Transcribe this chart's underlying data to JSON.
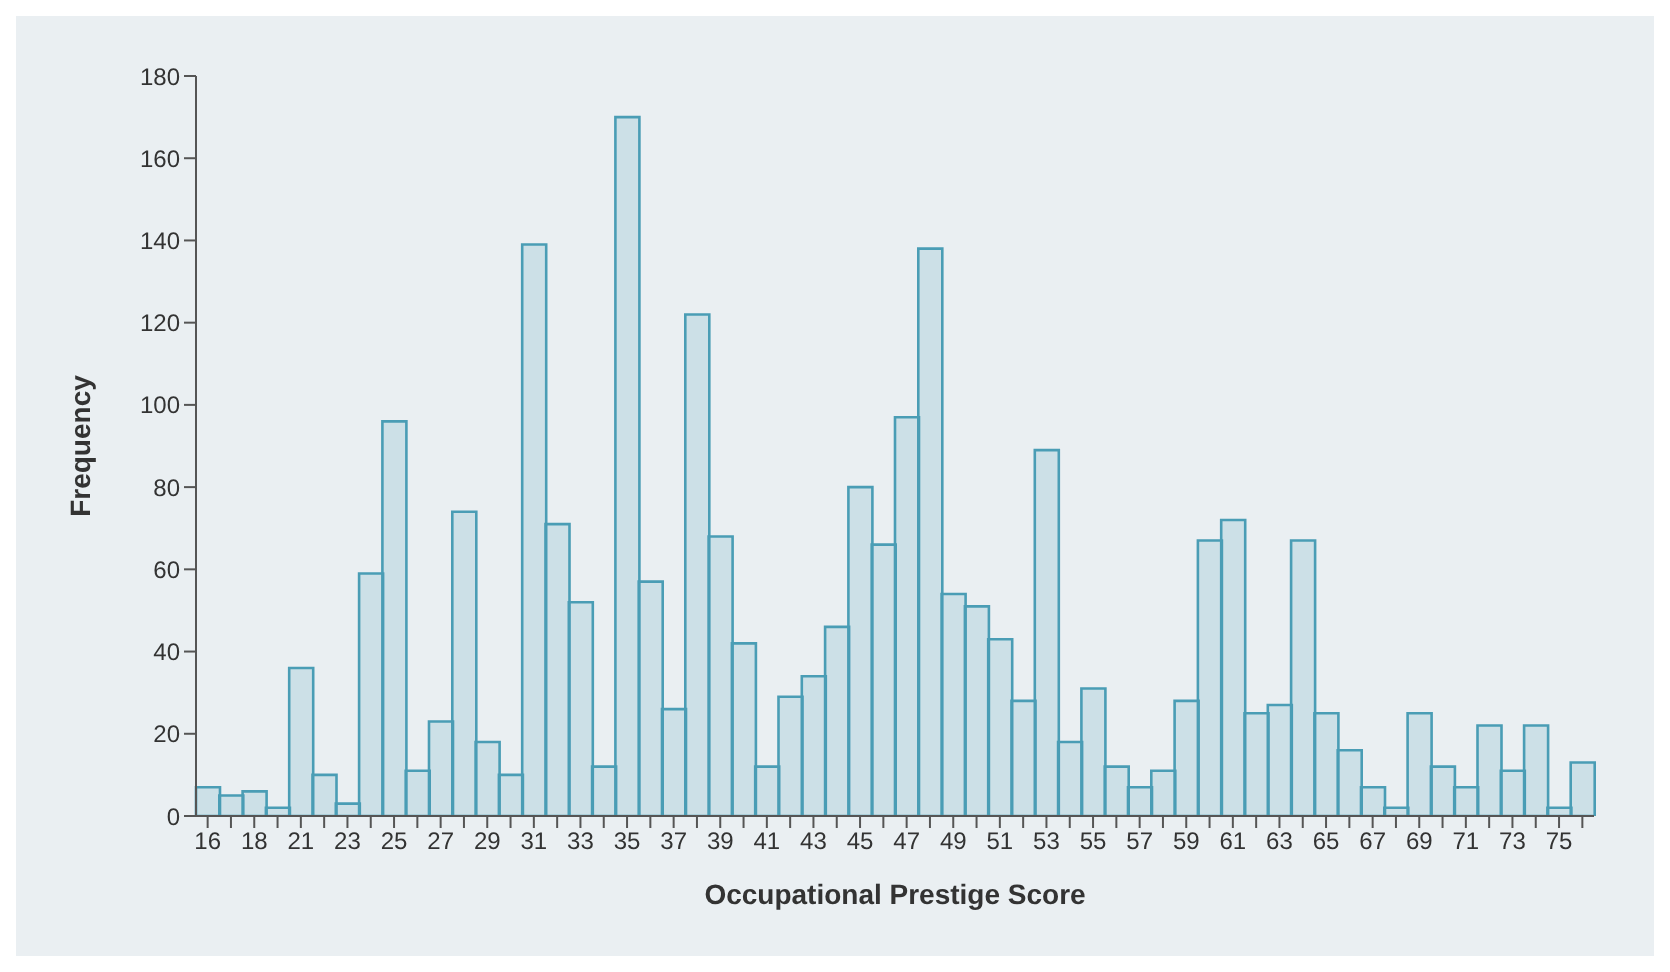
{
  "chart_data": {
    "type": "bar",
    "xlabel": "Occupational Prestige Score",
    "ylabel": "Frequency",
    "categories": [
      "16",
      null,
      "18",
      null,
      "21",
      null,
      "23",
      null,
      "25",
      null,
      "27",
      null,
      "29",
      null,
      "31",
      null,
      "33",
      null,
      "35",
      null,
      "37",
      null,
      "39",
      null,
      "41",
      null,
      "43",
      null,
      "45",
      null,
      "47",
      null,
      "49",
      null,
      "51",
      null,
      "53",
      null,
      "55",
      null,
      "57",
      null,
      "59",
      null,
      "61",
      null,
      "63",
      null,
      "65",
      null,
      "67",
      null,
      "69",
      null,
      "71",
      null,
      "73",
      null,
      "75",
      null
    ],
    "values": [
      7,
      5,
      6,
      2,
      36,
      10,
      3,
      59,
      96,
      11,
      23,
      74,
      18,
      10,
      139,
      71,
      52,
      12,
      170,
      57,
      26,
      122,
      68,
      42,
      12,
      29,
      34,
      46,
      80,
      66,
      97,
      138,
      54,
      51,
      43,
      28,
      89,
      18,
      31,
      12,
      7,
      11,
      28,
      67,
      72,
      25,
      27,
      67,
      25,
      16,
      7,
      2,
      25,
      12,
      7,
      22,
      11,
      22,
      2,
      13
    ],
    "color": "#4a9db5",
    "ylim": [
      0,
      180
    ],
    "yticks": [
      0,
      20,
      40,
      60,
      80,
      100,
      120,
      140,
      160,
      180
    ]
  }
}
